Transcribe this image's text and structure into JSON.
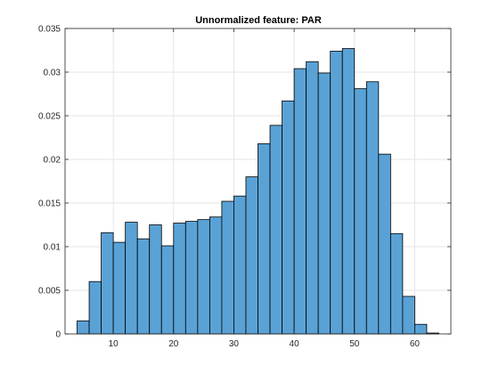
{
  "chart_data": {
    "type": "bar",
    "title": "Unnormalized feature: PAR",
    "xlabel": "",
    "ylabel": "",
    "xlim": [
      2,
      66
    ],
    "ylim": [
      0,
      0.035
    ],
    "xticks": [
      10,
      20,
      30,
      40,
      50,
      60
    ],
    "yticks": [
      0,
      0.005,
      0.01,
      0.015,
      0.02,
      0.025,
      0.03,
      0.035
    ],
    "xtick_labels": [
      "10",
      "20",
      "30",
      "40",
      "50",
      "60"
    ],
    "ytick_labels": [
      "0",
      "0.005",
      "0.01",
      "0.015",
      "0.02",
      "0.025",
      "0.03",
      "0.035"
    ],
    "grid": true,
    "bin_edges": [
      4,
      6,
      8,
      10,
      12,
      14,
      16,
      18,
      20,
      22,
      24,
      26,
      28,
      30,
      32,
      34,
      36,
      38,
      40,
      42,
      44,
      46,
      48,
      50,
      52,
      54,
      56,
      58,
      60,
      62,
      64
    ],
    "values": [
      0.0015,
      0.006,
      0.0116,
      0.0105,
      0.0128,
      0.0109,
      0.0125,
      0.0101,
      0.0127,
      0.0129,
      0.0131,
      0.0134,
      0.0152,
      0.0158,
      0.018,
      0.0218,
      0.0239,
      0.0267,
      0.0304,
      0.0312,
      0.0299,
      0.0324,
      0.0327,
      0.0281,
      0.0289,
      0.0206,
      0.0115,
      0.0043,
      0.0011,
      0.0001
    ],
    "colors": {
      "bar_fill": "#5aa2d6",
      "bar_edge": "#000000",
      "axis": "#262626",
      "grid": "#e6e6e6"
    }
  }
}
